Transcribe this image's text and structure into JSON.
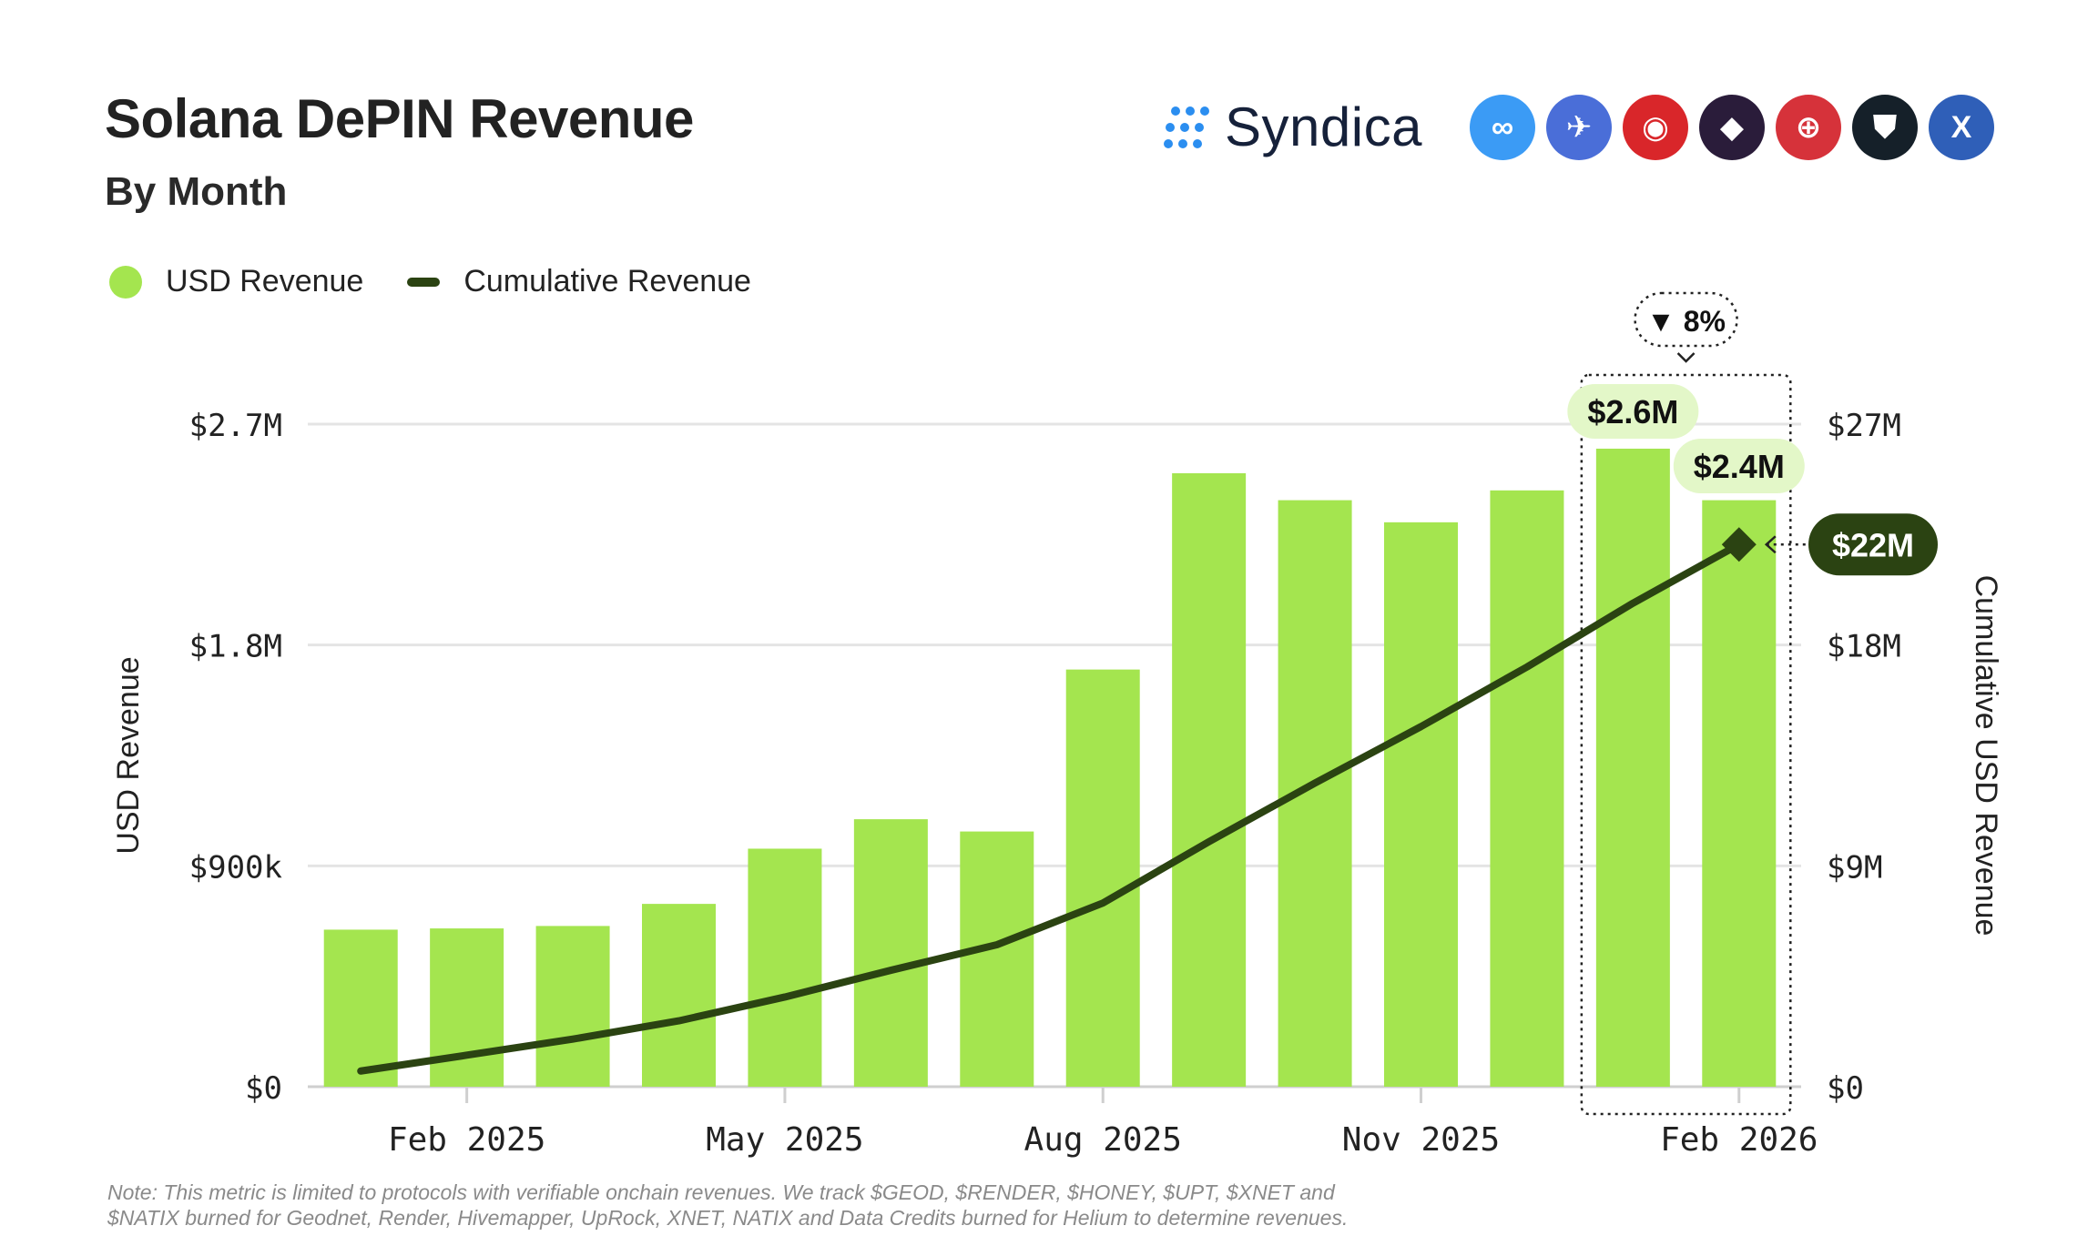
{
  "header": {
    "title": "Solana DePIN Revenue",
    "subtitle": "By Month"
  },
  "brand": {
    "name": "Syndica",
    "logos": [
      {
        "name": "helium-logo",
        "color": "#3b9bf5",
        "glyph": "∞"
      },
      {
        "name": "hivemapper-logo",
        "color": "#4a6ed8",
        "glyph": "✈"
      },
      {
        "name": "render-logo",
        "color": "#d9262a",
        "glyph": "◉"
      },
      {
        "name": "uprock-logo",
        "color": "#2a1c3a",
        "glyph": "◆"
      },
      {
        "name": "geodnet-logo",
        "color": "#d6323a",
        "glyph": "⊕"
      },
      {
        "name": "natix-logo",
        "color": "#152029",
        "glyph": "⛊"
      },
      {
        "name": "xnet-logo",
        "color": "#2f5fb8",
        "glyph": "X"
      }
    ]
  },
  "legend": {
    "bar_label": "USD Revenue",
    "line_label": "Cumulative Revenue"
  },
  "colors": {
    "bar": "#a4e54f",
    "line": "#2b4312",
    "badge_dark": "#2b4312",
    "badge_light": "#e3f7c8",
    "grid": "#e4e4e4"
  },
  "chart_data": {
    "type": "bar",
    "x": [
      "Jan 2025",
      "Feb 2025",
      "Mar 2025",
      "Apr 2025",
      "May 2025",
      "Jun 2025",
      "Jul 2025",
      "Aug 2025",
      "Sep 2025",
      "Oct 2025",
      "Nov 2025",
      "Dec 2025",
      "Jan 2026",
      "Feb 2026"
    ],
    "x_tick_labels": [
      "Feb 2025",
      "May 2025",
      "Aug 2025",
      "Nov 2025",
      "Feb 2026"
    ],
    "series": [
      {
        "name": "USD Revenue",
        "type": "bar",
        "axis": "left",
        "values": [
          640000,
          645000,
          655000,
          745000,
          970000,
          1090000,
          1040000,
          1700000,
          2500000,
          2390000,
          2300000,
          2430000,
          2600000,
          2390000
        ]
      },
      {
        "name": "Cumulative Revenue",
        "type": "line",
        "axis": "right",
        "values": [
          640000,
          1285000,
          1940000,
          2685000,
          3655000,
          4745000,
          5785000,
          7485000,
          9985000,
          12375000,
          14675000,
          17105000,
          19705000,
          22095000
        ]
      }
    ],
    "ylabel": "USD Revenue",
    "ylabel_right": "Cumulative USD Revenue",
    "ylim": [
      0,
      2700000
    ],
    "ylim_right": [
      0,
      27000000
    ],
    "y_ticks": [
      "$0",
      "$900k",
      "$1.8M",
      "$2.7M"
    ],
    "y_ticks_right": [
      "$0",
      "$9M",
      "$18M",
      "$27M"
    ],
    "annotations": {
      "jan_2026_bar": "$2.6M",
      "feb_2026_bar": "$2.4M",
      "cumulative_latest": "$22M",
      "change": "▼ 8%"
    },
    "grid": true,
    "legend_position": "top-left"
  },
  "footer": {
    "note_line1": "Note: This metric is limited to protocols with verifiable onchain revenues. We track $GEOD, $RENDER, $HONEY, $UPT, $XNET and",
    "note_line2": "$NATIX burned for Geodnet, Render, Hivemapper, UpRock, XNET, NATIX and Data Credits burned for Helium to determine revenues."
  }
}
